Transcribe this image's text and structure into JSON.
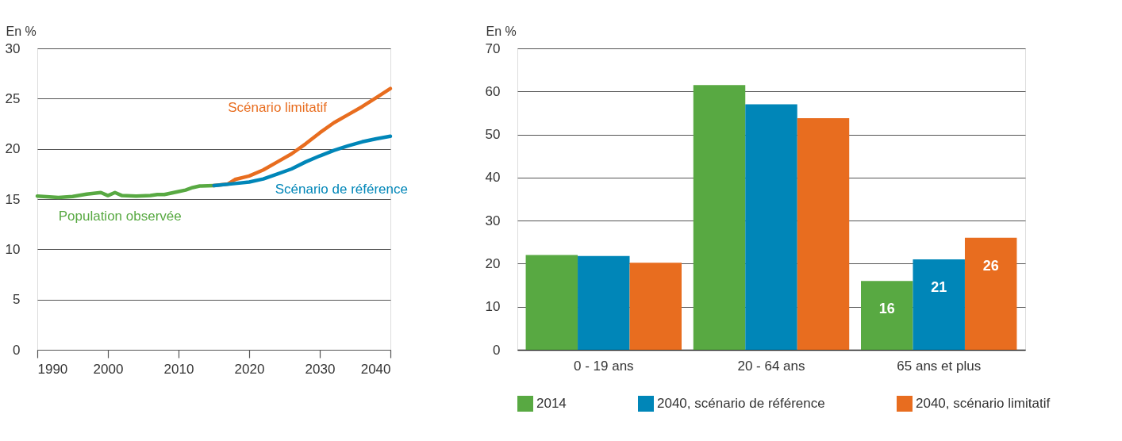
{
  "chart_data": [
    {
      "type": "line",
      "ylabel": "En %",
      "xlim": [
        1990,
        2040
      ],
      "xticks": [
        1990,
        2000,
        2010,
        2020,
        2030,
        2040
      ],
      "ylim": [
        0,
        30
      ],
      "yticks": [
        0,
        5,
        10,
        15,
        20,
        25,
        30
      ],
      "grid": "y",
      "legend": false,
      "series": [
        {
          "name": "Population observée",
          "color": "#58a942",
          "x": [
            1990,
            1993,
            1995,
            1997,
            1999,
            2000,
            2001,
            2002,
            2004,
            2006,
            2007,
            2008,
            2010,
            2011,
            2012,
            2013,
            2015
          ],
          "values": [
            15.3,
            15.15,
            15.25,
            15.5,
            15.65,
            15.35,
            15.65,
            15.35,
            15.3,
            15.35,
            15.45,
            15.45,
            15.75,
            15.9,
            16.15,
            16.3,
            16.35
          ]
        },
        {
          "name": "Scénario limitatif",
          "color": "#e86d1f",
          "x": [
            2015,
            2017,
            2018,
            2020,
            2022,
            2024,
            2026,
            2028,
            2030,
            2032,
            2034,
            2036,
            2038,
            2040
          ],
          "values": [
            16.35,
            16.5,
            16.95,
            17.3,
            17.9,
            18.7,
            19.5,
            20.5,
            21.6,
            22.6,
            23.4,
            24.2,
            25.1,
            26.0
          ]
        },
        {
          "name": "Scénario de référence",
          "color": "#0086b8",
          "x": [
            2015,
            2018,
            2020,
            2022,
            2024,
            2026,
            2028,
            2030,
            2032,
            2034,
            2036,
            2038,
            2040
          ],
          "values": [
            16.35,
            16.55,
            16.7,
            17.0,
            17.5,
            18.0,
            18.7,
            19.3,
            19.85,
            20.3,
            20.7,
            21.0,
            21.25
          ]
        }
      ]
    },
    {
      "type": "bar",
      "ylabel": "En %",
      "categories": [
        "0 - 19 ans",
        "20 - 64 ans",
        "65 ans et plus"
      ],
      "ylim": [
        0,
        70
      ],
      "yticks": [
        0,
        10,
        20,
        30,
        40,
        50,
        60,
        70
      ],
      "grid": "y",
      "legend": "bottom",
      "series": [
        {
          "name": "2014",
          "color": "#58a942",
          "values": [
            22.0,
            61.5,
            16
          ],
          "value_labels": [
            null,
            null,
            "16"
          ]
        },
        {
          "name": "2040, scénario de référence",
          "color": "#0086b8",
          "values": [
            21.8,
            57.0,
            21
          ],
          "value_labels": [
            null,
            null,
            "21"
          ]
        },
        {
          "name": "2040, scénario limitatif",
          "color": "#e86d1f",
          "values": [
            20.2,
            53.8,
            26
          ],
          "value_labels": [
            null,
            null,
            "26"
          ]
        }
      ]
    }
  ]
}
